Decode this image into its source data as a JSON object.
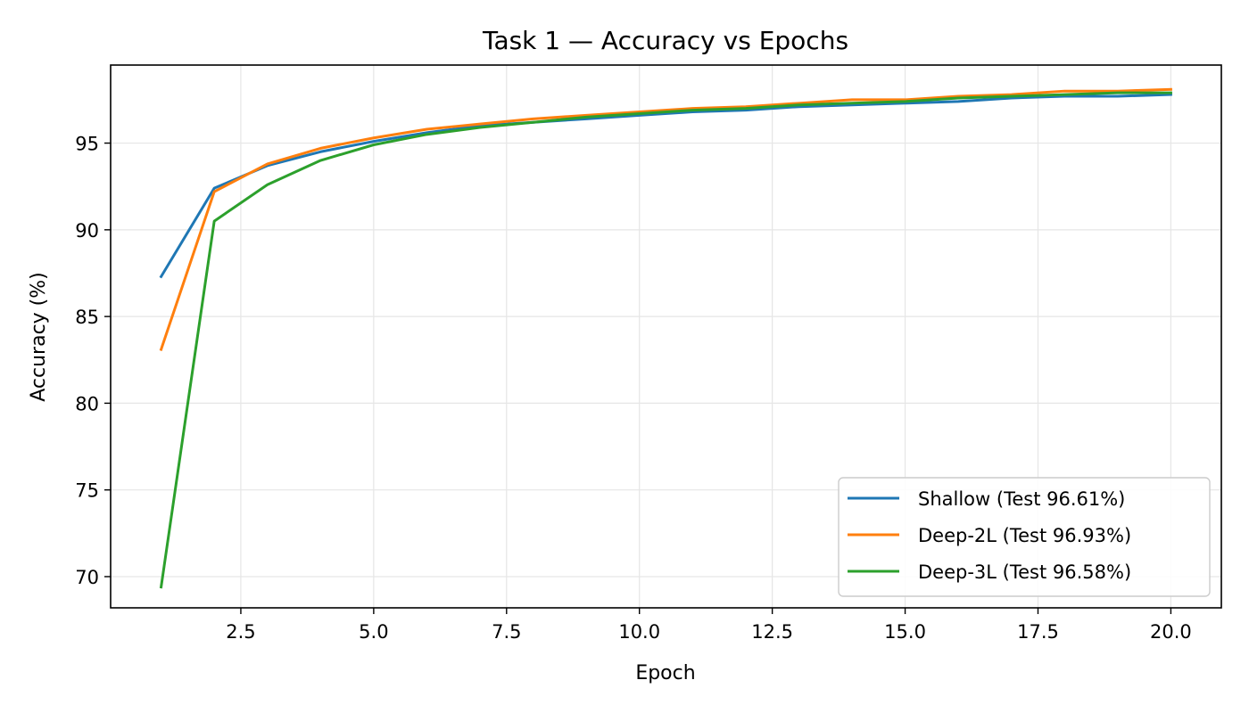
{
  "chart_data": {
    "type": "line",
    "title": "Task 1 — Accuracy vs Epochs",
    "xlabel": "Epoch",
    "ylabel": "Accuracy (%)",
    "xlim": [
      0.05,
      20.95
    ],
    "ylim": [
      68.2,
      99.5
    ],
    "xticks": [
      2.5,
      5.0,
      7.5,
      10.0,
      12.5,
      15.0,
      17.5,
      20.0
    ],
    "xtick_labels": [
      "2.5",
      "5.0",
      "7.5",
      "10.0",
      "12.5",
      "15.0",
      "17.5",
      "20.0"
    ],
    "yticks": [
      70,
      75,
      80,
      85,
      90,
      95
    ],
    "ytick_labels": [
      "70",
      "75",
      "80",
      "85",
      "90",
      "95"
    ],
    "grid": true,
    "legend_position": "bottom-right",
    "x": [
      1,
      2,
      3,
      4,
      5,
      6,
      7,
      8,
      9,
      10,
      11,
      12,
      13,
      14,
      15,
      16,
      17,
      18,
      19,
      20
    ],
    "series": [
      {
        "name": "Shallow (Test 96.61%)",
        "color": "#1f77b4",
        "values": [
          87.3,
          92.4,
          93.7,
          94.5,
          95.1,
          95.6,
          96.0,
          96.2,
          96.4,
          96.6,
          96.8,
          96.9,
          97.1,
          97.2,
          97.3,
          97.4,
          97.6,
          97.7,
          97.7,
          97.8
        ]
      },
      {
        "name": "Deep-2L (Test 96.93%)",
        "color": "#ff7f0e",
        "values": [
          83.1,
          92.2,
          93.8,
          94.7,
          95.3,
          95.8,
          96.1,
          96.4,
          96.6,
          96.8,
          97.0,
          97.1,
          97.3,
          97.5,
          97.5,
          97.7,
          97.8,
          98.0,
          98.0,
          98.1
        ]
      },
      {
        "name": "Deep-3L (Test 96.58%)",
        "color": "#2ca02c",
        "values": [
          69.4,
          90.5,
          92.6,
          94.0,
          94.9,
          95.5,
          95.9,
          96.2,
          96.5,
          96.7,
          96.9,
          97.0,
          97.2,
          97.3,
          97.4,
          97.6,
          97.7,
          97.8,
          97.9,
          97.9
        ]
      }
    ]
  }
}
